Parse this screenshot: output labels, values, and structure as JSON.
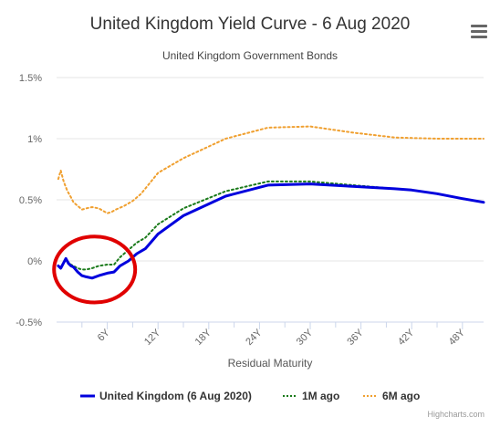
{
  "header": {
    "title": "United Kingdom Yield Curve - 6 Aug 2020",
    "subtitle": "United Kingdom Government Bonds",
    "menu_icon": "hamburger-menu-icon"
  },
  "credits": "Highcharts.com",
  "chart_data": {
    "type": "line",
    "title": "United Kingdom Yield Curve - 6 Aug 2020",
    "subtitle": "United Kingdom Government Bonds",
    "xlabel": "Residual Maturity",
    "ylabel": "",
    "xlim": [
      0,
      50.5
    ],
    "ylim": [
      -0.5,
      1.5
    ],
    "x_ticks": [
      6,
      12,
      18,
      24,
      30,
      36,
      42,
      48
    ],
    "x_tick_labels": [
      "6Y",
      "12Y",
      "18Y",
      "24Y",
      "30Y",
      "36Y",
      "42Y",
      "48Y"
    ],
    "y_ticks": [
      -0.5,
      0,
      0.5,
      1,
      1.5
    ],
    "y_tick_labels": [
      "-0.5%",
      "0%",
      "0.5%",
      "1%",
      "1.5%"
    ],
    "grid": "horizontal",
    "legend_position": "bottom",
    "series": [
      {
        "name": "United Kingdom (6 Aug 2020)",
        "color": "#0000dd",
        "style": "solid",
        "x": [
          0.2,
          0.5,
          0.8,
          1.1,
          1.4,
          1.7,
          2.0,
          2.5,
          3.0,
          3.5,
          4.2,
          5.0,
          6.0,
          6.8,
          7.5,
          8.5,
          9.5,
          10.5,
          12.0,
          15.0,
          20.0,
          25.0,
          30.0,
          35.0,
          40.0,
          42.0,
          45.0,
          48.0,
          50.5
        ],
        "y": [
          -0.04,
          -0.06,
          -0.02,
          0.02,
          -0.02,
          -0.04,
          -0.05,
          -0.09,
          -0.12,
          -0.13,
          -0.14,
          -0.12,
          -0.1,
          -0.09,
          -0.04,
          0.0,
          0.06,
          0.1,
          0.22,
          0.37,
          0.53,
          0.62,
          0.63,
          0.61,
          0.59,
          0.58,
          0.55,
          0.51,
          0.48
        ]
      },
      {
        "name": "1M ago",
        "color": "#1a7a1a",
        "style": "dotted",
        "x": [
          0.2,
          0.5,
          0.8,
          1.1,
          1.4,
          1.7,
          2.0,
          2.5,
          3.0,
          3.5,
          4.2,
          5.0,
          6.0,
          6.8,
          7.5,
          8.5,
          9.5,
          10.5,
          12.0,
          15.0,
          20.0,
          25.0,
          30.0,
          35.0,
          40.0,
          42.0,
          45.0,
          48.0,
          50.5
        ],
        "y": [
          -0.04,
          -0.05,
          -0.02,
          0.01,
          -0.01,
          -0.03,
          -0.04,
          -0.06,
          -0.07,
          -0.07,
          -0.06,
          -0.04,
          -0.03,
          -0.03,
          0.03,
          0.09,
          0.15,
          0.19,
          0.3,
          0.43,
          0.57,
          0.65,
          0.65,
          0.62,
          0.59,
          0.58,
          0.55,
          0.51,
          0.48
        ]
      },
      {
        "name": "6M ago",
        "color": "#f0a030",
        "style": "dotted",
        "x": [
          0.2,
          0.5,
          0.8,
          1.0,
          1.3,
          1.7,
          2.0,
          2.5,
          3.0,
          3.5,
          4.2,
          5.0,
          6.0,
          6.5,
          7.0,
          8.0,
          9.0,
          10.0,
          12.0,
          15.0,
          20.0,
          25.0,
          30.0,
          35.0,
          40.0,
          45.0,
          50.5
        ],
        "y": [
          0.67,
          0.74,
          0.66,
          0.62,
          0.57,
          0.52,
          0.48,
          0.45,
          0.42,
          0.43,
          0.44,
          0.43,
          0.39,
          0.4,
          0.42,
          0.45,
          0.49,
          0.55,
          0.72,
          0.84,
          1.0,
          1.09,
          1.1,
          1.05,
          1.01,
          1.0,
          1.0
        ]
      }
    ],
    "annotation": {
      "shape": "ellipse",
      "color": "#e00000",
      "center": [
        4.5,
        -0.07
      ],
      "radius_x": 4.8,
      "radius_y": 0.27
    }
  }
}
